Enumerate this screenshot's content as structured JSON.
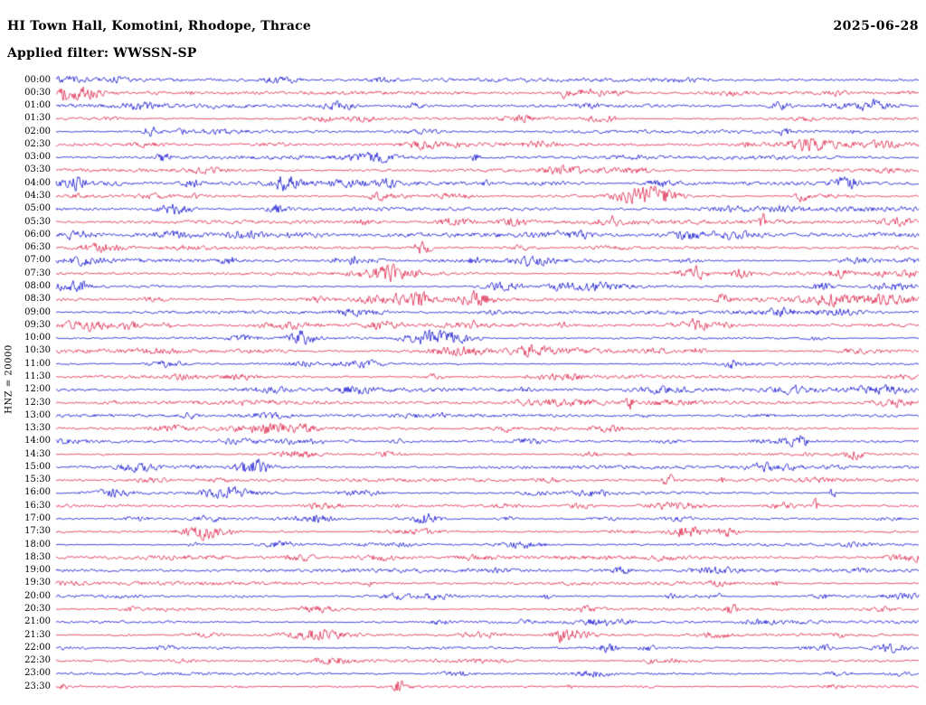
{
  "header": {
    "station_title": "HI Town Hall, Komotini, Rhodope, Thrace",
    "date": "2025-06-28",
    "filter_label": "Applied filter: WWSSN-SP"
  },
  "axis": {
    "scale_label": "HNZ = 20000",
    "row_labels": [
      "00:00",
      "00:30",
      "01:00",
      "01:30",
      "02:00",
      "02:30",
      "03:00",
      "03:30",
      "04:00",
      "04:30",
      "05:00",
      "05:30",
      "06:00",
      "06:30",
      "07:00",
      "07:30",
      "08:00",
      "08:30",
      "09:00",
      "09:30",
      "10:00",
      "10:30",
      "11:00",
      "11:30",
      "12:00",
      "12:30",
      "13:00",
      "13:30",
      "14:00",
      "14:30",
      "15:00",
      "15:30",
      "16:00",
      "16:30",
      "17:00",
      "17:30",
      "18:00",
      "18:30",
      "19:00",
      "19:30",
      "20:00",
      "20:30",
      "21:00",
      "21:30",
      "22:00",
      "22:30",
      "23:00",
      "23:30"
    ]
  },
  "chart_data": {
    "type": "line",
    "subtype": "seismogram-helicorder",
    "title": "HI Town Hall, Komotini, Rhodope, Thrace",
    "date": "2025-06-28",
    "filter": "WWSSN-SP",
    "channel": "HNZ",
    "gain": 20000,
    "rows": 48,
    "minutes_per_row": 30,
    "trace_colors": [
      "#0000cd",
      "#dc143c"
    ],
    "xlabel": "",
    "ylabel": "HNZ = 20000",
    "legend": "none",
    "grid": false,
    "description": "Continuous 24-hour vertical-component seismic record drawn as 48 stacked 30-minute traces alternating blue and red; ambient microseismic noise with intermittent higher-amplitude bursts throughout the day, densest activity roughly 03:00-12:00."
  }
}
